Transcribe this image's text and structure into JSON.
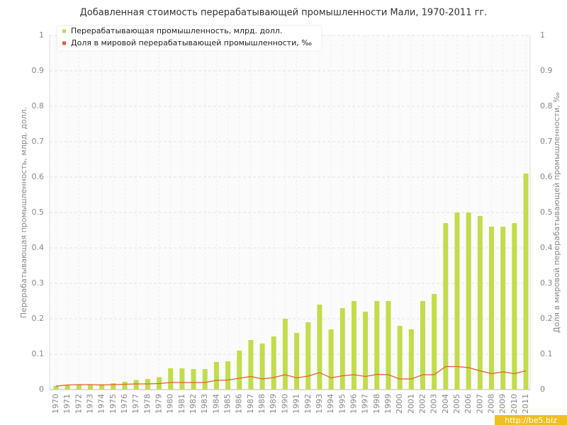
{
  "chart_data": {
    "type": "bar_line",
    "title": "Добавленная стоимость перерабатывающей промышленности Мали, 1970-2011 гг.",
    "y_label": "Перерабатывающая промышленность, млрд. долл.",
    "y2_label": "Доля в мировой перерабатывающей промышленности, ‰",
    "watermark": "http://be5.biz",
    "categories": [
      "1970",
      "1971",
      "1972",
      "1973",
      "1974",
      "1975",
      "1976",
      "1977",
      "1978",
      "1979",
      "1980",
      "1981",
      "1982",
      "1983",
      "1984",
      "1985",
      "1986",
      "1987",
      "1988",
      "1989",
      "1990",
      "1991",
      "1992",
      "1993",
      "1994",
      "1995",
      "1996",
      "1997",
      "1998",
      "1999",
      "2000",
      "2001",
      "2002",
      "2003",
      "2004",
      "2005",
      "2006",
      "2007",
      "2008",
      "2009",
      "2010",
      "2011"
    ],
    "series": [
      {
        "name": "Перерабатывающая промышленность, млрд. долл.",
        "color": "#c2dc4a",
        "kind": "bar",
        "values": [
          0.01,
          0.012,
          0.013,
          0.015,
          0.015,
          0.018,
          0.022,
          0.027,
          0.03,
          0.035,
          0.06,
          0.06,
          0.058,
          0.058,
          0.078,
          0.08,
          0.11,
          0.14,
          0.13,
          0.15,
          0.2,
          0.16,
          0.19,
          0.24,
          0.17,
          0.23,
          0.25,
          0.22,
          0.25,
          0.25,
          0.18,
          0.17,
          0.25,
          0.27,
          0.47,
          0.5,
          0.5,
          0.49,
          0.46,
          0.46,
          0.47,
          0.61
        ]
      },
      {
        "name": "Доля в мировой перерабатывающей промышленности, ‰",
        "color": "#e0602a",
        "kind": "line",
        "axis": "y2",
        "values": [
          0.01,
          0.013,
          0.014,
          0.014,
          0.013,
          0.014,
          0.015,
          0.016,
          0.016,
          0.017,
          0.02,
          0.02,
          0.02,
          0.02,
          0.026,
          0.027,
          0.032,
          0.037,
          0.03,
          0.034,
          0.042,
          0.033,
          0.038,
          0.048,
          0.033,
          0.039,
          0.042,
          0.037,
          0.043,
          0.042,
          0.03,
          0.03,
          0.042,
          0.042,
          0.065,
          0.065,
          0.062,
          0.053,
          0.045,
          0.05,
          0.045,
          0.053
        ]
      }
    ],
    "ylim": [
      0,
      1
    ],
    "yticks": [
      0,
      0.1,
      0.2,
      0.3,
      0.4,
      0.5,
      0.6,
      0.7,
      0.8,
      0.9,
      1
    ],
    "y2lim": [
      0,
      1
    ],
    "y2ticks": [
      0,
      0.1,
      0.2,
      0.3,
      0.4,
      0.5,
      0.6,
      0.7,
      0.8,
      0.9,
      1
    ],
    "grid": true,
    "legend": "top-left"
  }
}
